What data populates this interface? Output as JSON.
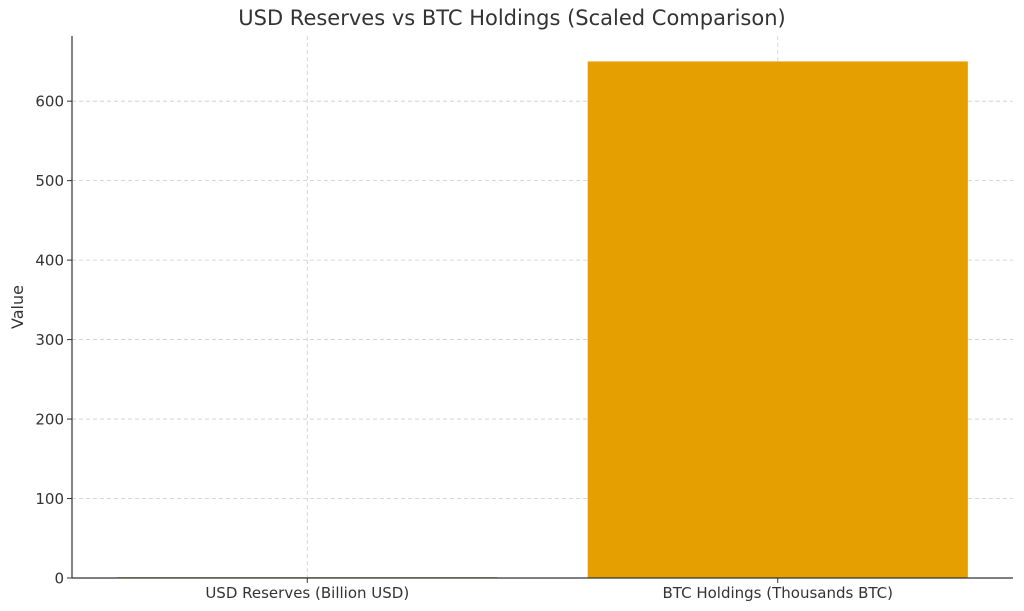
{
  "chart_data": {
    "type": "bar",
    "title": "USD Reserves vs BTC Holdings (Scaled Comparison)",
    "xlabel": "",
    "ylabel": "Value",
    "categories": [
      "USD Reserves (Billion USD)",
      "BTC Holdings (Thousands BTC)"
    ],
    "values": [
      0.9,
      650
    ],
    "colors": [
      "#8b6a00",
      "#e69f00"
    ],
    "ylim": [
      0,
      682
    ],
    "yticks": [
      0,
      100,
      200,
      300,
      400,
      500,
      600
    ],
    "grid": true,
    "legend": "none"
  }
}
